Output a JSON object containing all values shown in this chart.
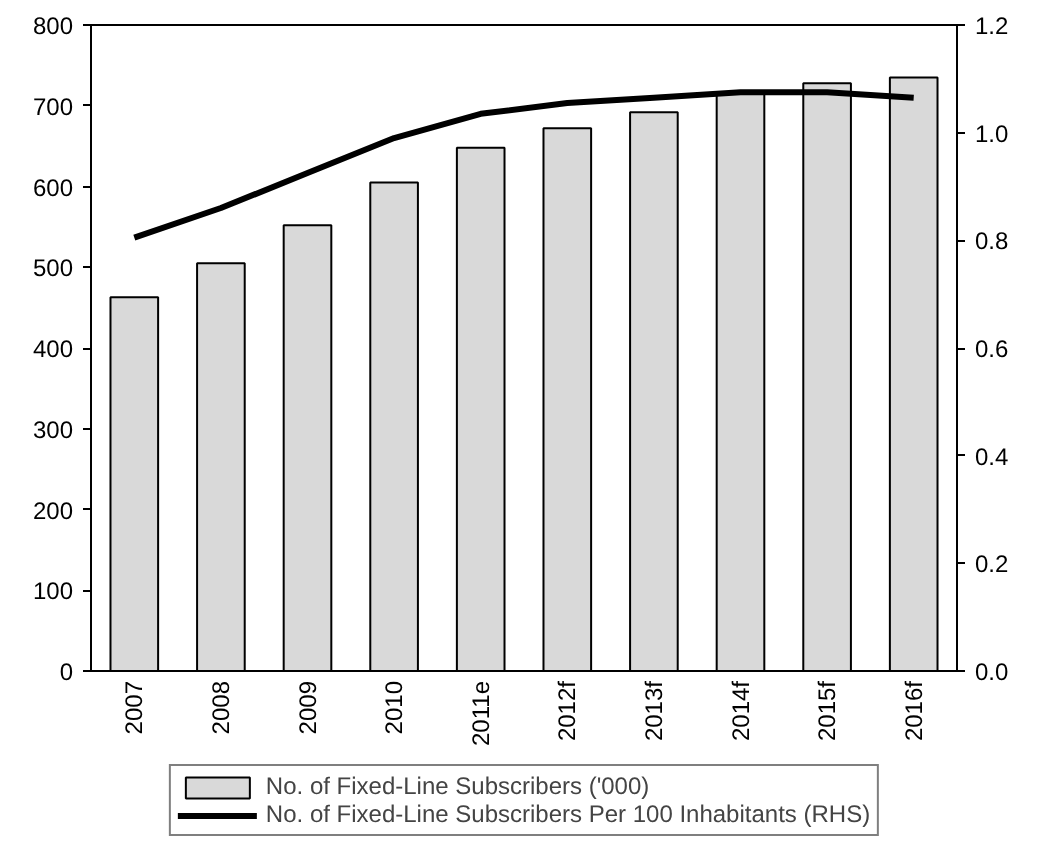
{
  "chart_data": {
    "type": "bar",
    "categories": [
      "2007",
      "2008",
      "2009",
      "2010",
      "2011e",
      "2012f",
      "2013f",
      "2014f",
      "2015f",
      "2016f"
    ],
    "series": [
      {
        "name": "No. of Fixed-Line Subscribers ('000)",
        "color": "#d9d9d9",
        "values": [
          463,
          505,
          552,
          605,
          648,
          672,
          692,
          715,
          728,
          735
        ]
      },
      {
        "name": "No. of Fixed-Line Subscribers Per 100 Inhabitants (RHS)",
        "type": "line",
        "axis": "y2",
        "color": "#000000",
        "values": [
          0.805,
          0.86,
          0.925,
          0.99,
          1.035,
          1.055,
          1.065,
          1.075,
          1.075,
          1.065
        ]
      }
    ],
    "ylim": [
      0,
      800
    ],
    "yticks": [
      0,
      100,
      200,
      300,
      400,
      500,
      600,
      700,
      800
    ],
    "y2lim": [
      0,
      1.2
    ],
    "y2ticks": [
      {
        "value": 0,
        "label": "0.0"
      },
      0.2,
      0.4,
      0.6,
      0.8,
      {
        "value": 1.0,
        "label": "1.0"
      },
      1.2
    ],
    "grid": false,
    "legend": "bottom",
    "marker": "none",
    "line_style": "solid"
  }
}
